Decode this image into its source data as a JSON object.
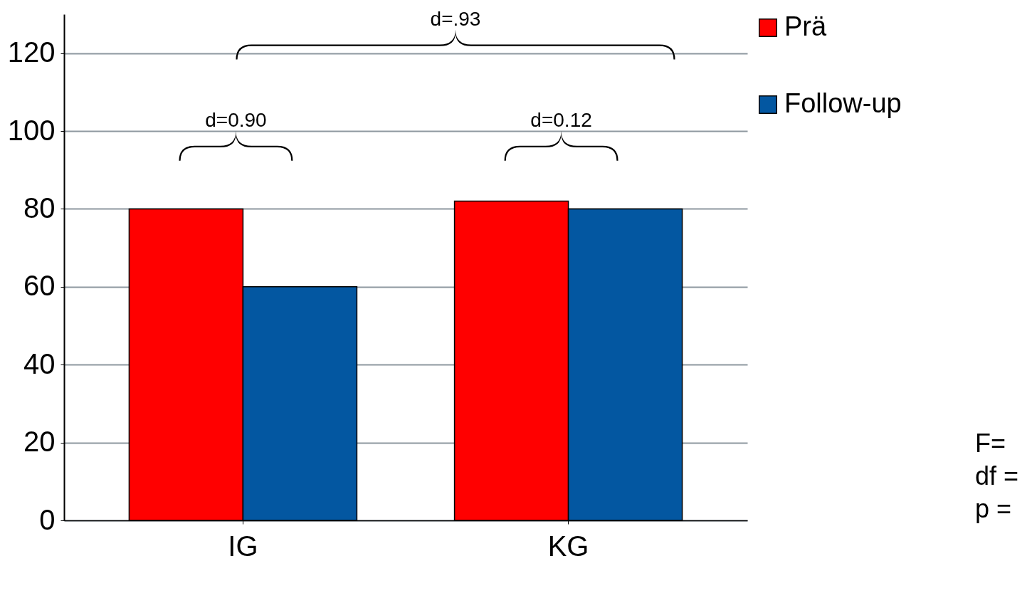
{
  "chart_data": {
    "type": "bar",
    "categories": [
      "IG",
      "KG"
    ],
    "series": [
      {
        "name": "Prä",
        "color": "#ff0000",
        "values": [
          80,
          82
        ]
      },
      {
        "name": "Follow-up",
        "color": "#0357a1",
        "values": [
          60,
          80
        ]
      }
    ],
    "ylim": [
      0,
      130
    ],
    "yticks": [
      0,
      20,
      40,
      60,
      80,
      100,
      120
    ],
    "grid": "y",
    "legend": "right",
    "annotations": [
      "d=0.90",
      "d=0.12",
      "d=.93",
      "F=",
      "df =",
      "p ="
    ]
  }
}
